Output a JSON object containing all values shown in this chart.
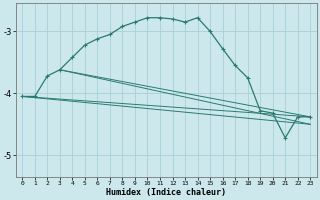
{
  "xlabel": "Humidex (Indice chaleur)",
  "bg_color": "#cce8ed",
  "grid_color": "#aad0d8",
  "line_color": "#2a7a70",
  "spine_color": "#777777",
  "xlim": [
    -0.5,
    23.5
  ],
  "ylim": [
    -5.35,
    -2.55
  ],
  "yticks": [
    -5,
    -4,
    -3
  ],
  "xticks": [
    0,
    1,
    2,
    3,
    4,
    5,
    6,
    7,
    8,
    9,
    10,
    11,
    12,
    13,
    14,
    15,
    16,
    17,
    18,
    19,
    20,
    21,
    22,
    23
  ],
  "main_x": [
    0,
    1,
    2,
    3,
    4,
    5,
    6,
    7,
    8,
    9,
    10,
    11,
    12,
    13,
    14,
    15,
    16,
    17,
    18,
    19,
    20,
    21,
    22,
    23
  ],
  "main_y": [
    -4.05,
    -4.05,
    -3.72,
    -3.62,
    -3.42,
    -3.22,
    -3.12,
    -3.05,
    -2.92,
    -2.85,
    -2.78,
    -2.78,
    -2.8,
    -2.85,
    -2.78,
    -3.0,
    -3.28,
    -3.55,
    -3.75,
    -4.28,
    -4.32,
    -4.72,
    -4.38,
    -4.38
  ],
  "trend_lines": [
    {
      "x": [
        0,
        23
      ],
      "y": [
        -4.05,
        -4.38
      ]
    },
    {
      "x": [
        0,
        23
      ],
      "y": [
        -4.05,
        -4.5
      ]
    },
    {
      "x": [
        3,
        23
      ],
      "y": [
        -3.62,
        -4.38
      ]
    },
    {
      "x": [
        3,
        23
      ],
      "y": [
        -3.62,
        -4.5
      ]
    }
  ]
}
